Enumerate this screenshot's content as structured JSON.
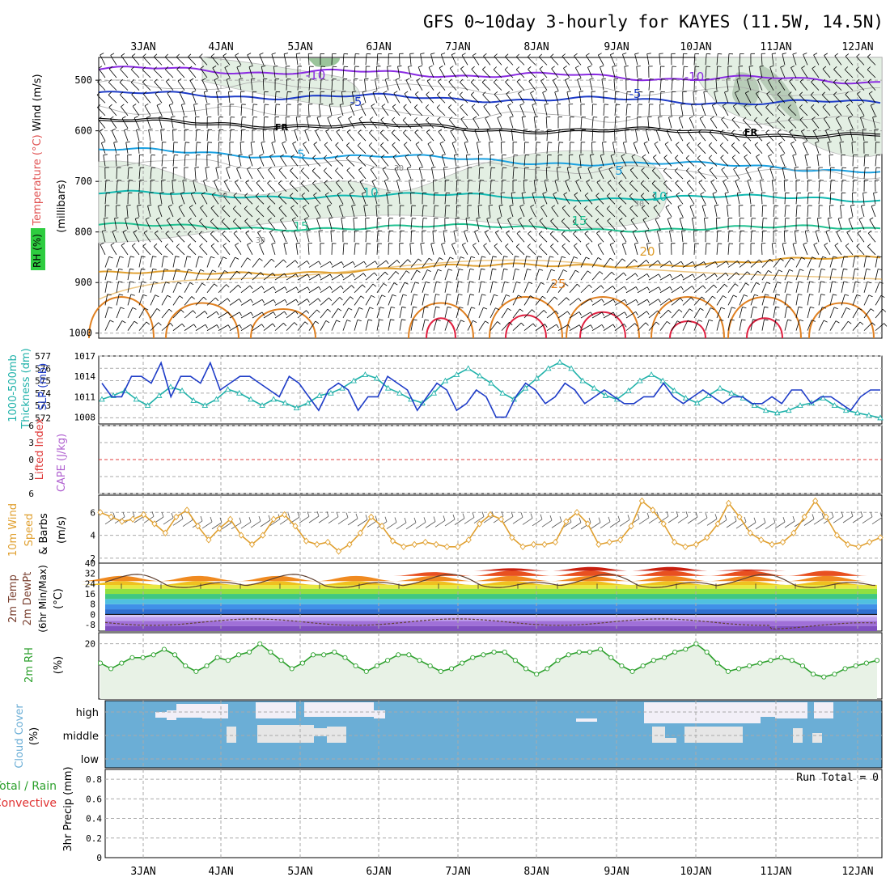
{
  "chart_data": {
    "type": "line",
    "title": "GFS 0~10day 3-hourly for KAYES (11.5W, 14.5N)",
    "date_labels": [
      "3JAN",
      "4JAN",
      "5JAN",
      "6JAN",
      "7JAN",
      "8JAN",
      "9JAN",
      "10JAN",
      "11JAN",
      "12JAN"
    ],
    "panels": {
      "upper": {
        "ylabel_parts": [
          "RH (%)",
          "Temperature (°C)",
          "Wind (m/s)"
        ],
        "yunit": "(millibars)",
        "y_ticks": [
          "500",
          "600",
          "700",
          "800",
          "900",
          "1000"
        ],
        "isotherm_labels": [
          "-10",
          "-10",
          "-5",
          "-5",
          "FR",
          "FR",
          "5",
          "5",
          "10",
          "10",
          "15",
          "15",
          "20",
          "25"
        ],
        "rh_labels": [
          "30",
          "30",
          "30",
          "30"
        ]
      },
      "sfc": {
        "ylabel_parts": [
          "1000-500mb",
          "Thickness (dm)",
          "SLP (mb)"
        ],
        "thickness_ticks": [
          "572",
          "573",
          "574",
          "575",
          "576",
          "577"
        ],
        "slp_ticks": [
          "1008",
          "1011",
          "1014",
          "1017"
        ],
        "slp": [
          1013,
          1011,
          1011,
          1014,
          1014,
          1013,
          1016,
          1011,
          1014,
          1014,
          1013,
          1016,
          1012,
          1013,
          1014,
          1014,
          1013,
          1012,
          1011,
          1014,
          1013,
          1011,
          1009,
          1012,
          1013,
          1012,
          1009,
          1011,
          1011,
          1014,
          1013,
          1012,
          1009,
          1011,
          1013,
          1012,
          1009,
          1010,
          1012,
          1011,
          1008,
          1008,
          1011,
          1013,
          1012,
          1010,
          1011,
          1013,
          1012,
          1010,
          1011,
          1012,
          1011,
          1010,
          1010,
          1011,
          1011,
          1013,
          1011,
          1010,
          1011,
          1012,
          1011,
          1010,
          1011,
          1011,
          1010,
          1010,
          1011,
          1010,
          1012,
          1012,
          1010,
          1011,
          1011,
          1010,
          1009,
          1011,
          1012,
          1012
        ],
        "thickness": [
          573.5,
          573.8,
          574.2,
          573.5,
          573.0,
          573.8,
          574.5,
          574.2,
          573.4,
          573.0,
          573.5,
          574.3,
          574.0,
          573.5,
          573.0,
          573.5,
          573.2,
          572.8,
          573.2,
          573.8,
          574.0,
          574.4,
          575.0,
          575.5,
          575.2,
          574.4,
          574.0,
          573.5,
          573.2,
          574.0,
          575.0,
          575.5,
          576.0,
          575.4,
          574.8,
          574.0,
          573.5,
          574.4,
          575.2,
          576.0,
          576.5,
          576.0,
          575.0,
          574.4,
          573.8,
          573.5,
          574.2,
          575.0,
          575.5,
          575.0,
          574.2,
          573.6,
          573.2,
          573.8,
          574.4,
          574.0,
          573.6,
          573.0,
          572.6,
          572.4,
          572.6,
          573.0,
          573.2,
          573.6,
          573.0,
          572.6,
          572.4,
          572.2,
          572.0
        ],
        "thickness_range": [
          571.5,
          577
        ],
        "slp_range": [
          1007,
          1017
        ]
      },
      "cape": {
        "ylabel_parts": [
          "Lifted Index",
          "CAPE (J/kg)"
        ],
        "y_ticks": [
          "6",
          "3",
          "0",
          "3",
          "6"
        ]
      },
      "wind10": {
        "ylabel_parts": [
          "10m Wind",
          "Speed",
          "& Barbs"
        ],
        "yunit": "(m/s)",
        "y_ticks": [
          "6",
          "4",
          "2"
        ],
        "speed": [
          6.0,
          5.6,
          5.2,
          5.4,
          5.8,
          5.0,
          4.2,
          5.6,
          6.2,
          4.8,
          3.6,
          4.6,
          5.4,
          4.0,
          3.2,
          4.0,
          5.4,
          5.8,
          4.8,
          3.5,
          3.2,
          3.4,
          2.6,
          3.2,
          4.2,
          5.6,
          4.8,
          3.5,
          3.0,
          3.2,
          3.4,
          3.2,
          3.0,
          3.0,
          3.6,
          5.0,
          5.8,
          5.4,
          3.8,
          3.0,
          3.2,
          3.2,
          3.4,
          5.2,
          6.0,
          5.0,
          3.2,
          3.4,
          3.6,
          4.8,
          7.0,
          6.2,
          5.0,
          3.4,
          3.0,
          3.2,
          3.8,
          5.0,
          6.8,
          5.6,
          4.2,
          3.6,
          3.2,
          3.4,
          4.2,
          5.6,
          7.0,
          5.6,
          4.0,
          3.2,
          3.0,
          3.4,
          3.8
        ],
        "y_range": [
          1.5,
          7.5
        ]
      },
      "temp2m": {
        "ylabel_parts": [
          "2m Temp",
          "2m DewPt",
          "(6hr Min/Max)",
          "(°C)"
        ],
        "y_ticks": [
          "40",
          "32",
          "24",
          "16",
          "8",
          "0",
          "-8"
        ],
        "temp_range": [
          -13,
          40
        ]
      },
      "rh2m": {
        "ylabel_parts": [
          "2m RH",
          "(%)"
        ],
        "y_ticks": [
          "20"
        ],
        "rh": [
          13,
          11,
          13,
          15,
          15,
          16,
          18,
          16,
          12,
          10,
          12,
          15,
          14,
          16,
          17,
          20,
          17,
          14,
          11,
          13,
          16,
          16,
          17,
          15,
          12,
          10,
          12,
          14,
          16,
          16,
          14,
          12,
          10,
          11,
          13,
          15,
          16,
          17,
          17,
          14,
          11,
          9,
          11,
          14,
          16,
          17,
          17,
          18,
          15,
          12,
          10,
          12,
          14,
          15,
          17,
          18,
          20,
          17,
          13,
          10,
          11,
          12,
          13,
          14,
          15,
          14,
          12,
          9,
          8,
          9,
          11,
          12,
          13,
          14
        ]
      },
      "cloud": {
        "ylabel_parts": [
          "Cloud Cover",
          "(%)"
        ],
        "levels": [
          "high",
          "middle",
          "low"
        ]
      },
      "precip": {
        "ylabel_parts": [
          "Total / Rain",
          "Convective",
          "3hr Precip (mm)"
        ],
        "y_ticks": [
          "0",
          "0.2",
          "0.4",
          "0.6",
          "0.8"
        ],
        "run_total": "Run Total = 0"
      }
    }
  },
  "colors": {
    "rh_green": "#2e8b57",
    "temp_purple": "#8a2be2",
    "slp_blue": "#1e3cc8",
    "thick_cyan": "#20b2aa",
    "li_red": "#e03c3c",
    "cape_violet": "#b060d0",
    "wind_orange": "#e0a030",
    "cloud_blue": "#6baed6",
    "precip_green": "#2ca02c"
  }
}
